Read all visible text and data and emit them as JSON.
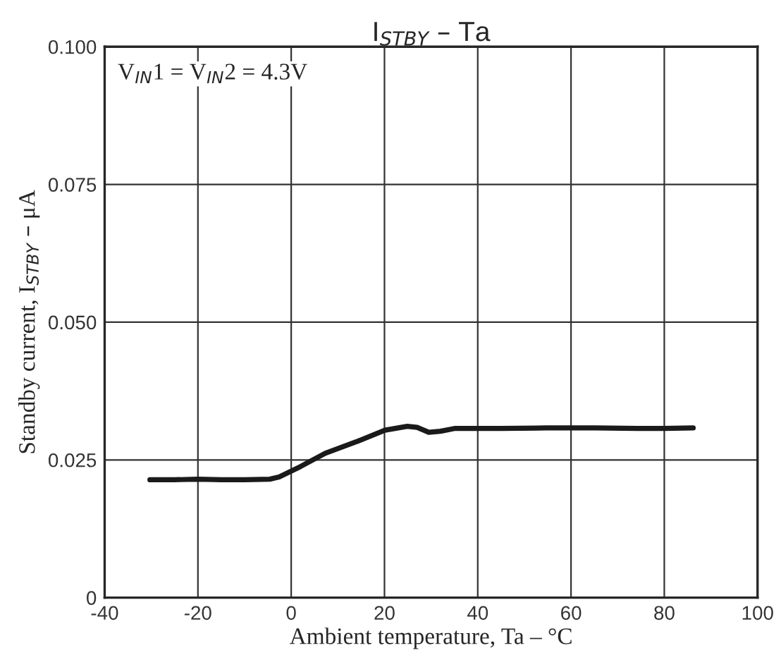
{
  "chart_data": {
    "type": "line",
    "title": "I$_{STBY}$ – Ta",
    "xlabel": "Ambient temperature, Ta – °C",
    "ylabel": "Standby current, I$_{STBY}$ – μA",
    "annotations": [
      "V$_{IN}$1 = V$_{IN}$2 = 4.3V"
    ],
    "series": [
      {
        "color": "#1a1a1a",
        "x": [
          -30.3,
          -25,
          -20,
          -15,
          -10,
          -4.6,
          -2.6,
          2,
          7.3,
          14,
          20.1,
          24.9,
          27,
          29.5,
          32,
          35,
          45,
          54.6,
          65,
          74.3,
          80,
          86.2
        ],
        "values": [
          0.0214,
          0.0214,
          0.0215,
          0.0214,
          0.0214,
          0.0215,
          0.0219,
          0.0238,
          0.0262,
          0.0283,
          0.0304,
          0.0311,
          0.0309,
          0.03,
          0.0302,
          0.0307,
          0.0307,
          0.0308,
          0.0308,
          0.0307,
          0.0307,
          0.0308
        ]
      }
    ],
    "xlim": [
      -40,
      100
    ],
    "ylim": [
      0,
      0.1
    ],
    "xticks": [
      {
        "value": -40,
        "label": "-40"
      },
      {
        "value": -20,
        "label": "-20"
      },
      0,
      20,
      40,
      60,
      80,
      100
    ],
    "yticks": [
      0,
      {
        "value": 0.025,
        "label": "0.025"
      },
      {
        "value": 0.05,
        "label": "0.050"
      },
      {
        "value": 0.075,
        "label": "0.075"
      },
      {
        "value": 0.1,
        "label": "0.100"
      }
    ],
    "grid": true,
    "line_style": "solid",
    "marker": "none"
  }
}
